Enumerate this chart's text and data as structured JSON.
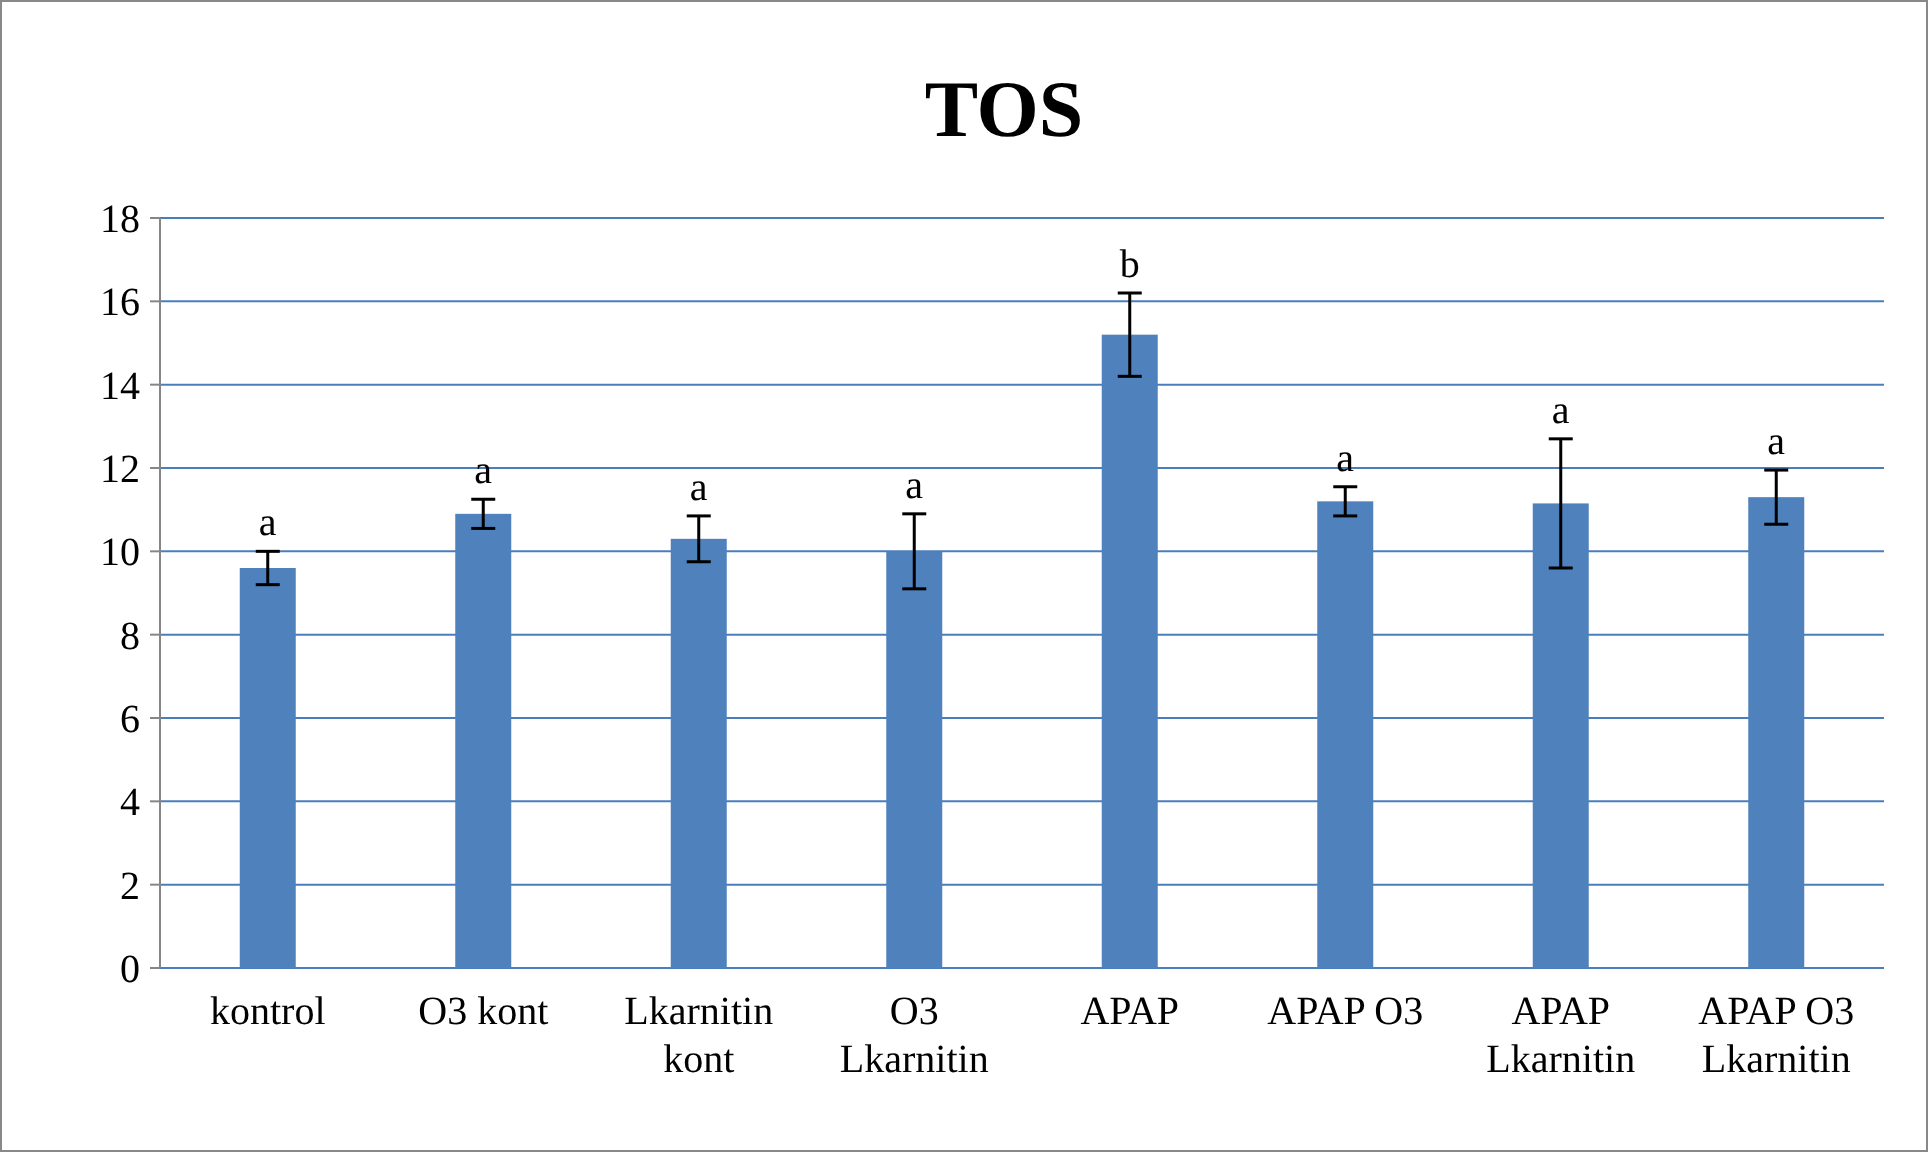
{
  "chart_data": {
    "type": "bar",
    "title": "TOS",
    "categories": [
      "kontrol",
      "O3 kont",
      "Lkarnitin kont",
      "O3 Lkarnitin",
      "APAP",
      "APAP O3",
      "APAP Lkarnitin",
      "APAP O3 Lkarnitin"
    ],
    "values": [
      9.6,
      10.9,
      10.3,
      10.0,
      15.2,
      11.2,
      11.15,
      11.3
    ],
    "errors": [
      0.4,
      0.35,
      0.55,
      0.9,
      1.0,
      0.35,
      1.55,
      0.65
    ],
    "color": "#4f81bd",
    "ylim": [
      0,
      18
    ],
    "yticks": [
      0,
      2,
      4,
      6,
      8,
      10,
      12,
      14,
      16,
      18
    ],
    "grid": "y",
    "annotations": [
      {
        "text": "a",
        "x": "kontrol",
        "y": 10.0
      },
      {
        "text": "a",
        "x": "O3 kont",
        "y": 11.25
      },
      {
        "text": "a",
        "x": "Lkarnitin kont",
        "y": 10.85
      },
      {
        "text": "a",
        "x": "O3 Lkarnitin",
        "y": 10.9
      },
      {
        "text": "b",
        "x": "APAP",
        "y": 16.2
      },
      {
        "text": "a",
        "x": "APAP O3",
        "y": 11.55
      },
      {
        "text": "a",
        "x": "APAP Lkarnitin",
        "y": 12.7
      },
      {
        "text": "a",
        "x": "APAP O3 Lkarnitin",
        "y": 11.95
      }
    ]
  }
}
